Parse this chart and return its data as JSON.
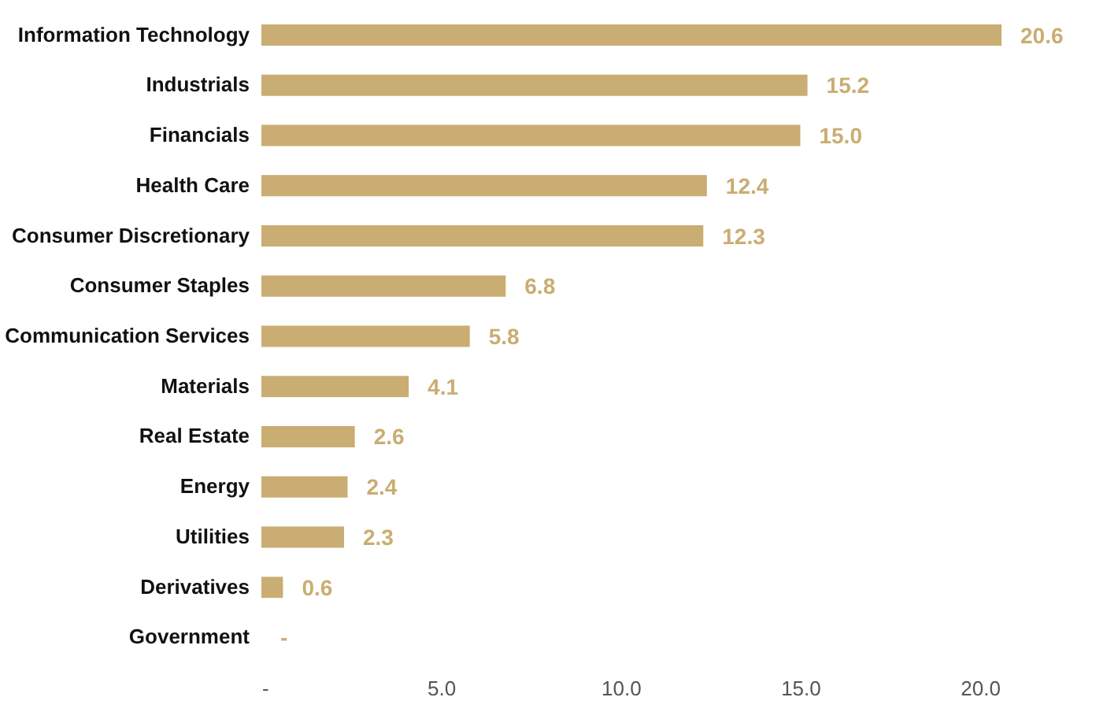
{
  "chart_data": {
    "type": "bar",
    "orientation": "horizontal",
    "categories": [
      "Information Technology",
      "Industrials",
      "Financials",
      "Health Care",
      "Consumer Discretionary",
      "Consumer Staples",
      "Communication Services",
      "Materials",
      "Real Estate",
      "Energy",
      "Utilities",
      "Derivatives",
      "Government"
    ],
    "values": [
      20.6,
      15.2,
      15.0,
      12.4,
      12.3,
      6.8,
      5.8,
      4.1,
      2.6,
      2.4,
      2.3,
      0.6,
      0
    ],
    "value_labels": [
      "20.6",
      "15.2",
      "15.0",
      "12.4",
      "12.3",
      "6.8",
      "5.8",
      "4.1",
      "2.6",
      "2.4",
      "2.3",
      "0.6",
      "-"
    ],
    "color": "#c9ad72",
    "xlim": [
      0,
      20.6
    ],
    "xticks": [
      {
        "value": 0,
        "label": "-"
      },
      {
        "value": 5,
        "label": "5.0"
      },
      {
        "value": 10,
        "label": "10.0"
      },
      {
        "value": 15,
        "label": "15.0"
      },
      {
        "value": 20,
        "label": "20.0"
      }
    ],
    "grid": false
  }
}
